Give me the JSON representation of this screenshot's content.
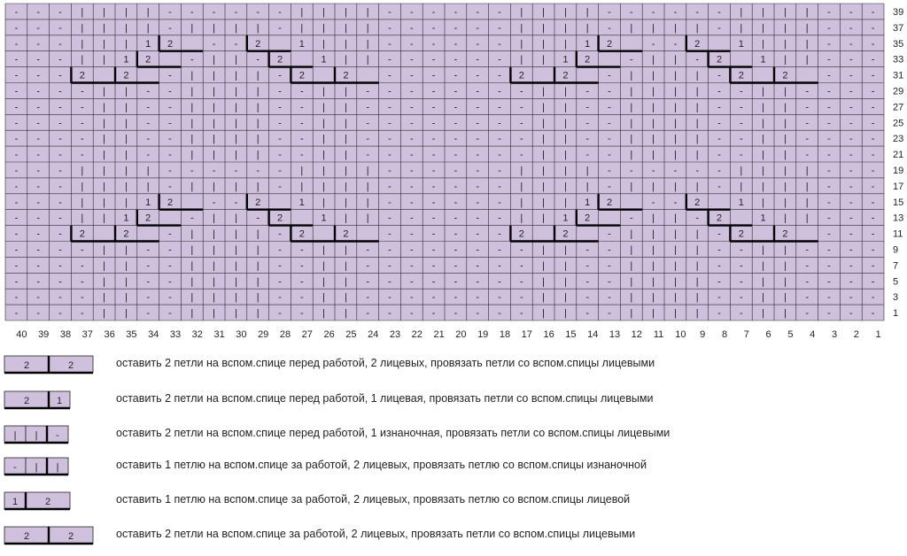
{
  "grid": {
    "colors": {
      "cell": "#cfc1de",
      "line": "#2a2a2a",
      "cable": "#000000"
    },
    "columns": [
      "40",
      "39",
      "38",
      "37",
      "36",
      "35",
      "34",
      "33",
      "32",
      "31",
      "30",
      "29",
      "28",
      "27",
      "26",
      "25",
      "24",
      "23",
      "22",
      "21",
      "20",
      "19",
      "18",
      "17",
      "16",
      "15",
      "14",
      "13",
      "12",
      "11",
      "10",
      "9",
      "8",
      "7",
      "6",
      "5",
      "4",
      "3",
      "2",
      "1"
    ],
    "right_labels": [
      "39",
      "37",
      "35",
      "33",
      "31",
      "29",
      "27",
      "25",
      "23",
      "21",
      "19",
      "17",
      "15",
      "13",
      "11",
      "9",
      "7",
      "5",
      "3",
      "1"
    ],
    "rows": [
      "---||||||-------||||||||",
      "---|||||-|||||-||||||-|||||-|||||||---",
      "---||||1|2|||||2|1||||||||||",
      "---||1|2||||||2|1|||||||||||",
      "---2|2|||||||||||2|2||||||||",
      "---|||||||||||||||||||||---",
      "---|||||||||||||||||||||---",
      "---|||||||||||||||||||||---",
      "---|||||||||||||||||||||---",
      "---|||||||||||||||||||||---",
      "---|||||||||||||||||||||---",
      "---|||||||||||||||||||||---",
      "---|||||||||||||||||||||---",
      "---|||||||||||||||||||||---",
      "---|||||||||||||||||||||---",
      "---|||||||||||||||||||||---",
      "---|||||||||||||||||||||---",
      "---|||||||||||||||||||||---",
      "---|||||||||||||||||||||---",
      "---|||||||||||||||||||||---"
    ],
    "cells": [
      [
        "-",
        "-",
        "-",
        "|",
        "|",
        "|",
        "|",
        "-",
        "-",
        "-",
        "-",
        "-",
        "-",
        "|",
        "|",
        "|",
        "|",
        "-",
        "-",
        "-",
        "-",
        "-",
        "-",
        "|",
        "|",
        "|",
        "|",
        "-",
        "-",
        "-",
        "-",
        "-",
        "-",
        "|",
        "|",
        "|",
        "|",
        "-",
        "-",
        "-"
      ],
      [
        "-",
        "-",
        "-",
        "|",
        "|",
        "|",
        "|",
        "-",
        "|",
        "|",
        "|",
        "|",
        "-",
        "|",
        "|",
        "|",
        "|",
        "-",
        "-",
        "-",
        "-",
        "-",
        "-",
        "|",
        "|",
        "|",
        "|",
        "-",
        "|",
        "|",
        "|",
        "|",
        "-",
        "|",
        "|",
        "|",
        "|",
        "-",
        "-",
        "-"
      ],
      [
        "-",
        "-",
        "-",
        "|",
        "|",
        "|",
        "1",
        "2",
        "",
        "-",
        "-",
        "2",
        "",
        "1",
        "|",
        "|",
        "|",
        "-",
        "-",
        "-",
        "-",
        "-",
        "-",
        "|",
        "|",
        "|",
        "1",
        "2",
        "",
        "-",
        "-",
        "2",
        "",
        "1",
        "|",
        "|",
        "|",
        "-",
        "-",
        "-"
      ],
      [
        "-",
        "-",
        "-",
        "|",
        "|",
        "1",
        "2",
        "",
        "-",
        "|",
        "|",
        "-",
        "2",
        "",
        "1",
        "|",
        "|",
        "-",
        "-",
        "-",
        "-",
        "-",
        "-",
        "|",
        "|",
        "1",
        "2",
        "",
        "-",
        "|",
        "|",
        "-",
        "2",
        "",
        "1",
        "|",
        "|",
        "-",
        "-",
        "-"
      ],
      [
        "-",
        "-",
        "-",
        "2",
        "",
        "2",
        "",
        "-",
        "|",
        "|",
        "|",
        "|",
        "-",
        "2",
        "",
        "2",
        "",
        "-",
        "-",
        "-",
        "-",
        "-",
        "-",
        "2",
        "",
        "2",
        "",
        "-",
        "|",
        "|",
        "|",
        "|",
        "-",
        "2",
        "",
        "2",
        "",
        "-",
        "-",
        "-"
      ],
      [
        "-",
        "-",
        "-",
        "-",
        "|",
        "|",
        "-",
        "-",
        "|",
        "|",
        "|",
        "|",
        "-",
        "-",
        "|",
        "|",
        "-",
        "-",
        "-",
        "-",
        "-",
        "-",
        "-",
        "-",
        "|",
        "|",
        "-",
        "-",
        "|",
        "|",
        "|",
        "|",
        "-",
        "-",
        "|",
        "|",
        "-",
        "-",
        "-",
        "-"
      ],
      [
        "-",
        "-",
        "-",
        "-",
        "|",
        "|",
        "-",
        "-",
        "|",
        "|",
        "|",
        "|",
        "-",
        "-",
        "|",
        "|",
        "-",
        "-",
        "-",
        "-",
        "-",
        "-",
        "-",
        "-",
        "|",
        "|",
        "-",
        "-",
        "|",
        "|",
        "|",
        "|",
        "-",
        "-",
        "|",
        "|",
        "-",
        "-",
        "-",
        "-"
      ],
      [
        "-",
        "-",
        "-",
        "-",
        "|",
        "|",
        "-",
        "-",
        "|",
        "|",
        "|",
        "|",
        "-",
        "-",
        "|",
        "|",
        "-",
        "-",
        "-",
        "-",
        "-",
        "-",
        "-",
        "-",
        "|",
        "|",
        "-",
        "-",
        "|",
        "|",
        "|",
        "|",
        "-",
        "-",
        "|",
        "|",
        "-",
        "-",
        "-",
        "-"
      ],
      [
        "-",
        "-",
        "-",
        "-",
        "|",
        "|",
        "-",
        "-",
        "|",
        "|",
        "|",
        "|",
        "-",
        "-",
        "|",
        "|",
        "-",
        "-",
        "-",
        "-",
        "-",
        "-",
        "-",
        "-",
        "|",
        "|",
        "-",
        "-",
        "|",
        "|",
        "|",
        "|",
        "-",
        "-",
        "|",
        "|",
        "-",
        "-",
        "-",
        "-"
      ],
      [
        "-",
        "-",
        "-",
        "-",
        "|",
        "|",
        "-",
        "-",
        "|",
        "|",
        "|",
        "|",
        "-",
        "-",
        "|",
        "|",
        "-",
        "-",
        "-",
        "-",
        "-",
        "-",
        "-",
        "-",
        "|",
        "|",
        "-",
        "-",
        "|",
        "|",
        "|",
        "|",
        "-",
        "-",
        "|",
        "|",
        "-",
        "-",
        "-",
        "-"
      ],
      [
        "-",
        "-",
        "-",
        "|",
        "|",
        "|",
        "|",
        "-",
        "-",
        "-",
        "-",
        "-",
        "-",
        "|",
        "|",
        "|",
        "|",
        "-",
        "-",
        "-",
        "-",
        "-",
        "-",
        "|",
        "|",
        "|",
        "|",
        "-",
        "-",
        "-",
        "-",
        "-",
        "-",
        "|",
        "|",
        "|",
        "|",
        "-",
        "-",
        "-"
      ],
      [
        "-",
        "-",
        "-",
        "|",
        "|",
        "|",
        "|",
        "-",
        "|",
        "|",
        "|",
        "|",
        "-",
        "|",
        "|",
        "|",
        "|",
        "-",
        "-",
        "-",
        "-",
        "-",
        "-",
        "|",
        "|",
        "|",
        "|",
        "-",
        "|",
        "|",
        "|",
        "|",
        "-",
        "|",
        "|",
        "|",
        "|",
        "-",
        "-",
        "-"
      ],
      [
        "-",
        "-",
        "-",
        "|",
        "|",
        "|",
        "1",
        "2",
        "",
        "-",
        "-",
        "2",
        "",
        "1",
        "|",
        "|",
        "|",
        "-",
        "-",
        "-",
        "-",
        "-",
        "-",
        "|",
        "|",
        "|",
        "1",
        "2",
        "",
        "-",
        "-",
        "2",
        "",
        "1",
        "|",
        "|",
        "|",
        "-",
        "-",
        "-"
      ],
      [
        "-",
        "-",
        "-",
        "|",
        "|",
        "1",
        "2",
        "",
        "-",
        "|",
        "|",
        "-",
        "2",
        "",
        "1",
        "|",
        "|",
        "-",
        "-",
        "-",
        "-",
        "-",
        "-",
        "|",
        "|",
        "1",
        "2",
        "",
        "-",
        "|",
        "|",
        "-",
        "2",
        "",
        "1",
        "|",
        "|",
        "-",
        "-",
        "-"
      ],
      [
        "-",
        "-",
        "-",
        "2",
        "",
        "2",
        "",
        "-",
        "|",
        "|",
        "|",
        "|",
        "-",
        "2",
        "",
        "2",
        "",
        "-",
        "-",
        "-",
        "-",
        "-",
        "-",
        "2",
        "",
        "2",
        "",
        "-",
        "|",
        "|",
        "|",
        "|",
        "-",
        "2",
        "",
        "2",
        "",
        "-",
        "-",
        "-"
      ],
      [
        "-",
        "-",
        "-",
        "-",
        "|",
        "|",
        "-",
        "-",
        "|",
        "|",
        "|",
        "|",
        "-",
        "-",
        "|",
        "|",
        "-",
        "-",
        "-",
        "-",
        "-",
        "-",
        "-",
        "-",
        "|",
        "|",
        "-",
        "-",
        "|",
        "|",
        "|",
        "|",
        "-",
        "-",
        "|",
        "|",
        "-",
        "-",
        "-",
        "-"
      ],
      [
        "-",
        "-",
        "-",
        "-",
        "|",
        "|",
        "-",
        "-",
        "|",
        "|",
        "|",
        "|",
        "-",
        "-",
        "|",
        "|",
        "-",
        "-",
        "-",
        "-",
        "-",
        "-",
        "-",
        "-",
        "|",
        "|",
        "-",
        "-",
        "|",
        "|",
        "|",
        "|",
        "-",
        "-",
        "|",
        "|",
        "-",
        "-",
        "-",
        "-"
      ],
      [
        "-",
        "-",
        "-",
        "-",
        "|",
        "|",
        "-",
        "-",
        "|",
        "|",
        "|",
        "|",
        "-",
        "-",
        "|",
        "|",
        "-",
        "-",
        "-",
        "-",
        "-",
        "-",
        "-",
        "-",
        "|",
        "|",
        "-",
        "-",
        "|",
        "|",
        "|",
        "|",
        "-",
        "-",
        "|",
        "|",
        "-",
        "-",
        "-",
        "-"
      ],
      [
        "-",
        "-",
        "-",
        "-",
        "|",
        "|",
        "-",
        "-",
        "|",
        "|",
        "|",
        "|",
        "-",
        "-",
        "|",
        "|",
        "-",
        "-",
        "-",
        "-",
        "-",
        "-",
        "-",
        "-",
        "|",
        "|",
        "-",
        "-",
        "|",
        "|",
        "|",
        "|",
        "-",
        "-",
        "|",
        "|",
        "-",
        "-",
        "-",
        "-"
      ],
      [
        "-",
        "-",
        "-",
        "-",
        "|",
        "|",
        "-",
        "-",
        "|",
        "|",
        "|",
        "|",
        "-",
        "-",
        "|",
        "|",
        "-",
        "-",
        "-",
        "-",
        "-",
        "-",
        "-",
        "-",
        "|",
        "|",
        "-",
        "-",
        "|",
        "|",
        "|",
        "|",
        "-",
        "-",
        "|",
        "|",
        "-",
        "-",
        "-",
        "-"
      ]
    ]
  },
  "legend": [
    {
      "cells": [
        "2",
        "2"
      ],
      "text": "оставить 2 петли на вспом.спице перед работой, 2 лицевых, провязать петли со вспом.спицы лицевыми"
    },
    {
      "cells": [
        "2",
        "1"
      ],
      "text": "оставить 2 петли на вспом.спице перед работой, 1 лицевая, провязать петли со вспом.спицы лицевыми"
    },
    {
      "cells": [
        "|",
        "|",
        "-"
      ],
      "text": "оставить 2 петли на вспом.спице перед работой, 1 изнаночная, провязать петли со вспом.спицы лицевыми"
    },
    {
      "cells": [
        "-",
        "|",
        "|"
      ],
      "text": "оставить 1 петлю на вспом.спице за работой, 2 лицевых, провязать петлю со вспом.спицы изнаночной"
    },
    {
      "cells": [
        "1",
        "2"
      ],
      "text": "оставить 1 петлю на вспом.спице за работой, 2 лицевых, провязать петлю со вспом.спицы лицевой"
    },
    {
      "cells": [
        "2",
        "2"
      ],
      "text": "оставить 2 петли на вспом.спице за работой, 2 лицевых, провязать петли со вспом.спицы лицевыми"
    }
  ]
}
